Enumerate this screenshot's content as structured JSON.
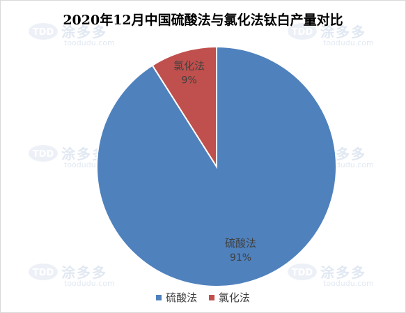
{
  "chart_data": {
    "type": "pie",
    "title": "2020年12月中国硫酸法与氯化法钛白产量对比",
    "slices": [
      {
        "label": "硫酸法",
        "value": 91,
        "display": "91%",
        "color": "#4f81bd"
      },
      {
        "label": "氯化法",
        "value": 9,
        "display": "9%",
        "color": "#c0504d"
      }
    ],
    "legend": "bottom"
  },
  "watermark": {
    "logo_text": "TDD",
    "brand": "涂多多",
    "url": "toodudu.com"
  }
}
